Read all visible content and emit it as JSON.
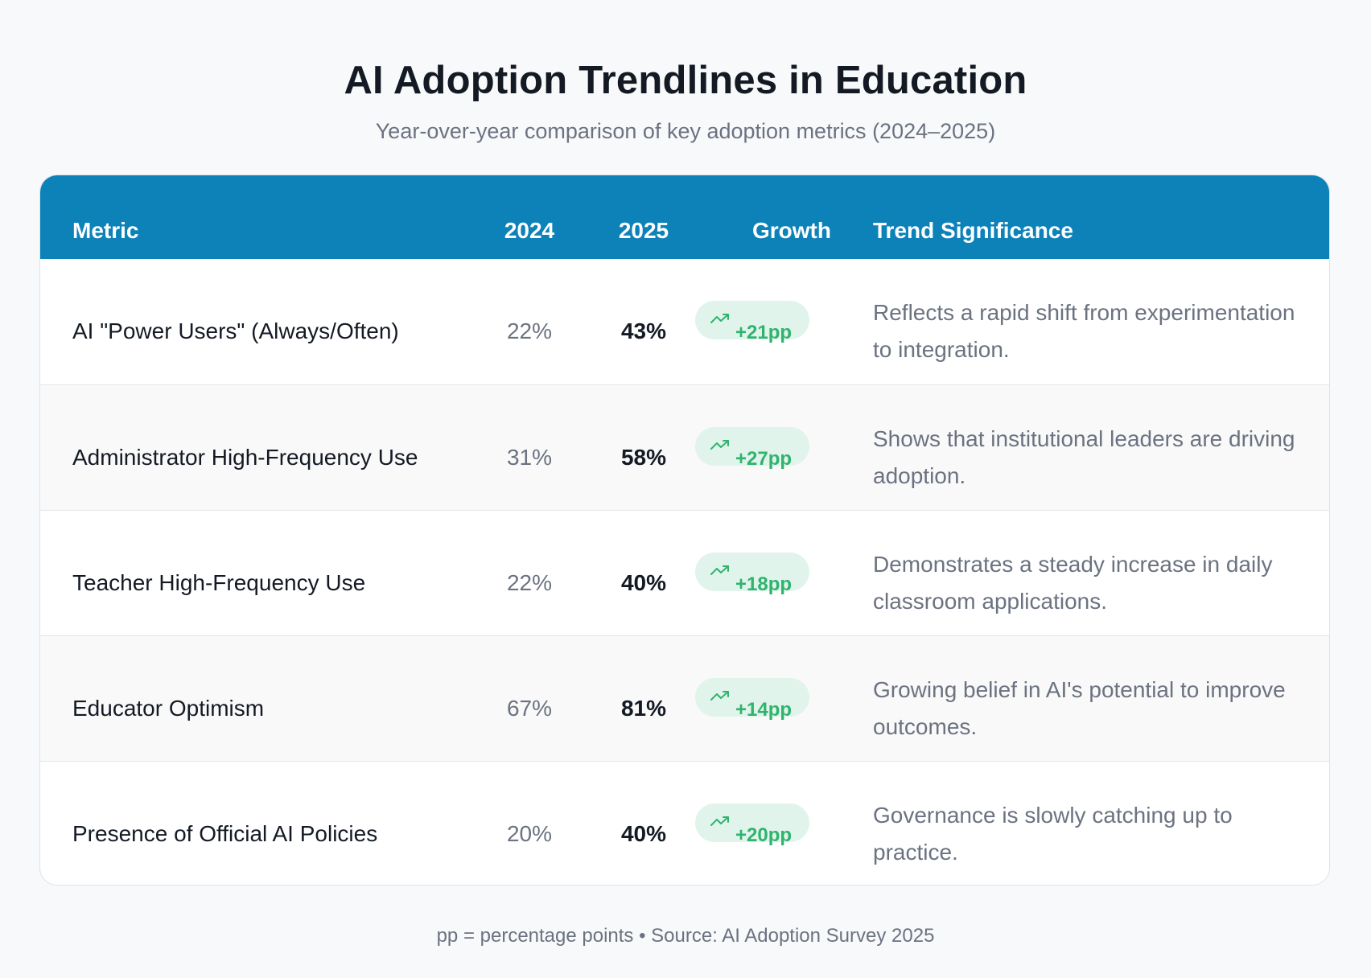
{
  "title": "AI Adoption Trendlines in Education",
  "subtitle": "Year-over-year comparison of key adoption metrics (2024–2025)",
  "colors": {
    "header_bg": "#0d82b9",
    "growth_text": "#2fb36d",
    "growth_badge_bg": "#e0f4ec"
  },
  "chart_data": {
    "type": "table",
    "title": "AI Adoption Trendlines in Education",
    "columns": [
      "Metric",
      "2024",
      "2025",
      "Growth",
      "Trend Significance"
    ],
    "rows": [
      {
        "metric": "AI \"Power Users\" (Always/Often)",
        "y2024": "22%",
        "y2025": "43%",
        "growth": "+21pp",
        "significance": "Reflects a rapid shift from experimentation to integration."
      },
      {
        "metric": "Administrator High-Frequency Use",
        "y2024": "31%",
        "y2025": "58%",
        "growth": "+27pp",
        "significance": "Shows that institutional leaders are driving adoption."
      },
      {
        "metric": "Teacher High-Frequency Use",
        "y2024": "22%",
        "y2025": "40%",
        "growth": "+18pp",
        "significance": "Demonstrates a steady increase in daily classroom applications."
      },
      {
        "metric": "Educator Optimism",
        "y2024": "67%",
        "y2025": "81%",
        "growth": "+14pp",
        "significance": "Growing belief in AI's potential to improve outcomes."
      },
      {
        "metric": "Presence of Official AI Policies",
        "y2024": "20%",
        "y2025": "40%",
        "growth": "+20pp",
        "significance": "Governance is slowly catching up to practice."
      }
    ],
    "growth_icon": "trending-up-icon"
  },
  "footer": "pp = percentage points • Source: AI Adoption Survey 2025"
}
